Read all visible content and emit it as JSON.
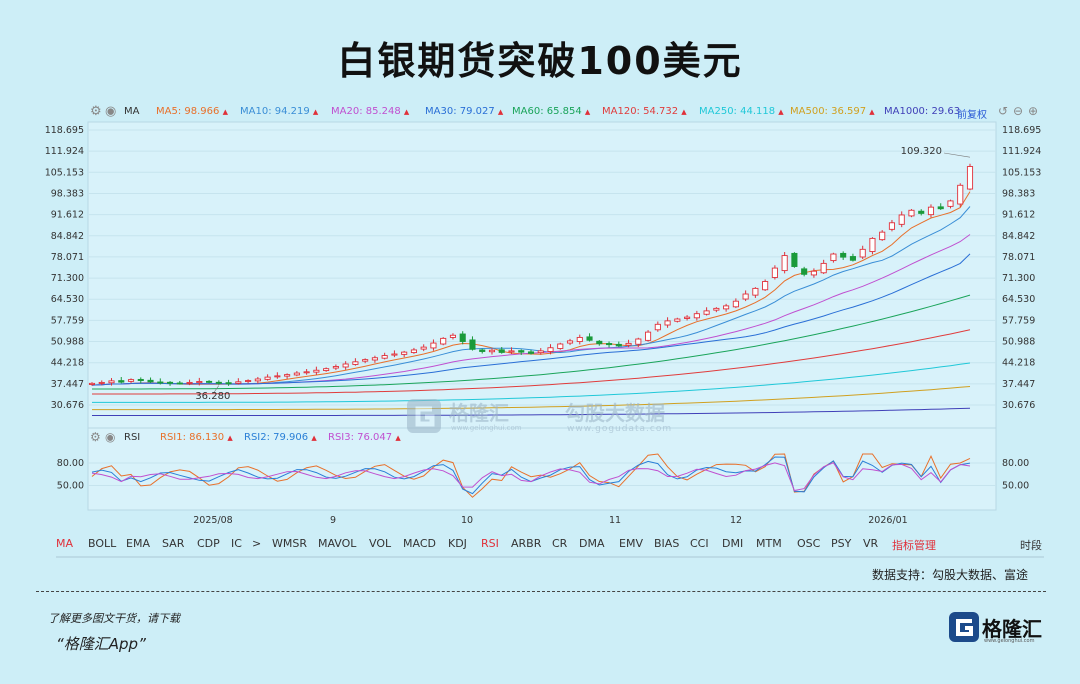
{
  "title": "白银期货突破100美元",
  "ma_header": {
    "indicator_label": "MA",
    "items": [
      {
        "label": "MA5:",
        "value": "98.966",
        "color": "#e8702a"
      },
      {
        "label": "MA10:",
        "value": "94.219",
        "color": "#3a8ed6"
      },
      {
        "label": "MA20:",
        "value": "85.248",
        "color": "#c050d0"
      },
      {
        "label": "MA30:",
        "value": "79.027",
        "color": "#2a6fd6"
      },
      {
        "label": "MA60:",
        "value": "65.854",
        "color": "#1aa45a"
      },
      {
        "label": "MA120:",
        "value": "54.732",
        "color": "#e03c3c"
      },
      {
        "label": "MA250:",
        "value": "44.118",
        "color": "#20c8d8"
      },
      {
        "label": "MA500:",
        "value": "36.597",
        "color": "#d0a020"
      },
      {
        "label": "MA1000:",
        "value": "29.63",
        "color": "#4040b8"
      }
    ],
    "adjust_label": "前复权"
  },
  "rsi_header": {
    "indicator_label": "RSI",
    "items": [
      {
        "label": "RSI1:",
        "value": "86.130",
        "color": "#e8702a"
      },
      {
        "label": "RSI2:",
        "value": "79.906",
        "color": "#2a7fd6"
      },
      {
        "label": "RSI3:",
        "value": "76.047",
        "color": "#c050d0"
      }
    ]
  },
  "chart_data": [
    {
      "type": "candlestick",
      "title": "",
      "y_ticks": [
        "118.695",
        "111.924",
        "105.153",
        "98.383",
        "91.612",
        "84.842",
        "78.071",
        "71.300",
        "64.530",
        "57.759",
        "50.988",
        "44.218",
        "37.447",
        "30.676"
      ],
      "ylim": [
        25.8,
        120.7
      ],
      "x_ticks": [
        "2025/08",
        "9",
        "10",
        "11",
        "12",
        "2026/01"
      ],
      "annotations": [
        {
          "text": "109.320",
          "note": "period high"
        },
        {
          "text": "36.280",
          "note": "period low"
        }
      ],
      "close_approx": [
        37.6,
        37.9,
        38.4,
        38.0,
        38.8,
        38.5,
        38.1,
        37.9,
        37.7,
        37.6,
        37.9,
        38.2,
        38.0,
        37.8,
        37.7,
        38.1,
        38.5,
        39.0,
        39.6,
        40.0,
        40.4,
        40.9,
        41.3,
        41.8,
        42.3,
        43.0,
        43.8,
        44.5,
        45.2,
        45.8,
        46.5,
        47.0,
        47.6,
        48.3,
        49.2,
        50.5,
        52.0,
        53.0,
        51.0,
        48.5,
        47.8,
        48.2,
        47.5,
        48.0,
        47.6,
        47.2,
        48.0,
        49.0,
        50.2,
        51.2,
        52.3,
        51.4,
        50.3,
        50.0,
        49.6,
        50.4,
        51.8,
        54.0,
        56.5,
        57.6,
        58.2,
        58.8,
        59.9,
        60.8,
        61.6,
        62.4,
        63.9,
        66.2,
        68.0,
        70.2,
        74.5,
        78.5,
        75.0,
        72.5,
        73.5,
        76.0,
        79.0,
        78.0,
        77.0,
        80.5,
        84.0,
        86.0,
        89.0,
        91.5,
        93.0,
        92.0,
        94.0,
        93.5,
        96.0,
        101.0,
        107.0
      ],
      "moving_averages": [
        {
          "name": "MA5",
          "start": 37.2,
          "end": 98.966
        },
        {
          "name": "MA10",
          "start": 37.0,
          "end": 94.219
        },
        {
          "name": "MA20",
          "start": 36.8,
          "end": 85.248
        },
        {
          "name": "MA30",
          "start": 36.6,
          "end": 79.027
        },
        {
          "name": "MA60",
          "start": 35.8,
          "end": 65.854
        },
        {
          "name": "MA120",
          "start": 34.2,
          "end": 54.732
        },
        {
          "name": "MA250",
          "start": 31.5,
          "end": 44.118
        },
        {
          "name": "MA500",
          "start": 29.2,
          "end": 36.597
        },
        {
          "name": "MA1000",
          "start": 27.3,
          "end": 29.63
        }
      ]
    },
    {
      "type": "line",
      "title": "",
      "y_ticks": [
        "80.00",
        "50.00"
      ],
      "ylim": [
        20,
        100
      ],
      "series": [
        {
          "name": "RSI1",
          "last": 86.13
        },
        {
          "name": "RSI2",
          "last": 79.906
        },
        {
          "name": "RSI3",
          "last": 76.047
        }
      ]
    }
  ],
  "tabs": [
    "MA",
    "BOLL",
    "EMA",
    "SAR",
    "CDP",
    "IC",
    ">",
    "WMSR",
    "MAVOL",
    "VOL",
    "MACD",
    "KDJ",
    "RSI",
    "ARBR",
    "CR",
    "DMA",
    "EMV",
    "BIAS",
    "CCI",
    "DMI",
    "MTM",
    "OSC",
    "PSY",
    "VR",
    "指标管理",
    "时段"
  ],
  "active_tabs": [
    "MA",
    "RSI"
  ],
  "data_source": "数据支持：勾股大数据、富途",
  "watermark": {
    "brand1": "格隆汇",
    "sub1": "www.gelonghui.com",
    "brand2": "勾股大数据",
    "sub2": "www.gogudata.com"
  },
  "promo": {
    "line1": "了解更多图文干货，请下载",
    "line2": "“格隆汇App”"
  },
  "brand": {
    "name": "格隆汇",
    "sub": "www.gelonghui.com"
  },
  "colors": {
    "background": "#cdeef7",
    "up": "#e0303a",
    "down": "#1a9a3a"
  }
}
